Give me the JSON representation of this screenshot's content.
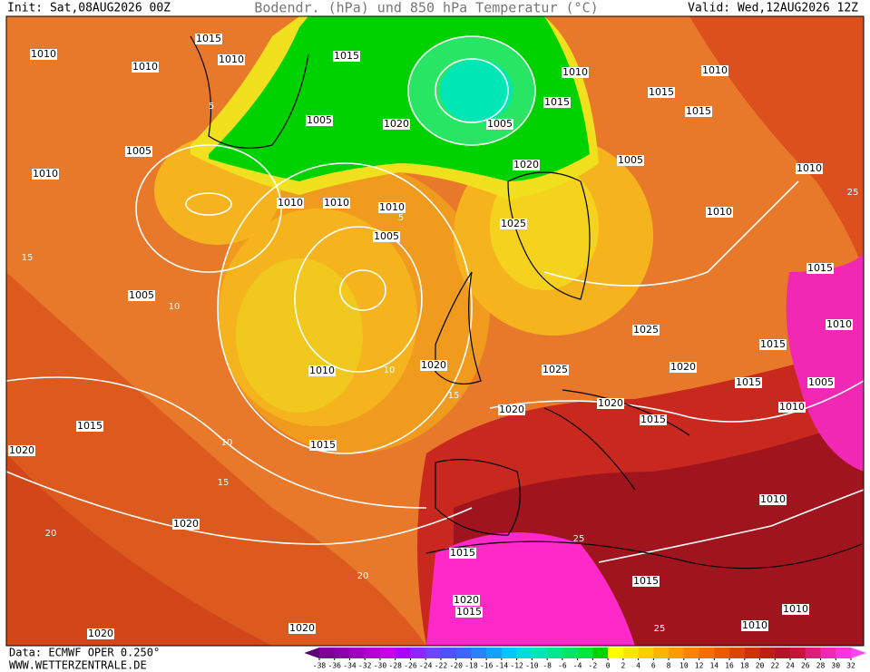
{
  "header": {
    "init": "Init: Sat,08AUG2026 00Z",
    "title": "Bodendr. (hPa) und 850 hPa Temperatur (°C)",
    "valid": "Valid: Wed,12AUG2026 12Z"
  },
  "footer": {
    "data": "Data: ECMWF OPER 0.250°",
    "site": "WWW.WETTERZENTRALE.DE"
  },
  "colorbar": {
    "ticks": [
      -38,
      -36,
      -34,
      -32,
      -30,
      -28,
      -26,
      -24,
      -22,
      -20,
      -18,
      -16,
      -14,
      -12,
      -10,
      -8,
      -6,
      -4,
      -2,
      0,
      2,
      4,
      6,
      8,
      10,
      12,
      14,
      16,
      18,
      20,
      22,
      24,
      26,
      28,
      30,
      32
    ],
    "colors": [
      "#5a0078",
      "#7a0096",
      "#8c00aa",
      "#a000c0",
      "#b400d2",
      "#c800e6",
      "#aa00ff",
      "#8c28ff",
      "#6e46ff",
      "#5050ff",
      "#3c64ff",
      "#2882ff",
      "#14a0ff",
      "#00c8ff",
      "#00dcdc",
      "#00e6b4",
      "#00e68c",
      "#00e664",
      "#00e63c",
      "#00d200",
      "#ffff00",
      "#ffe600",
      "#ffcd00",
      "#ffb400",
      "#ff9b00",
      "#ff8200",
      "#f56e00",
      "#eb5a00",
      "#dc4600",
      "#cd3200",
      "#be1e14",
      "#b41428",
      "#c8143c",
      "#dc1e78",
      "#f028b4",
      "#ff32dc",
      "#ff46f0"
    ]
  },
  "isobar_labels": [
    "1015",
    "1010",
    "1010",
    "1010",
    "1015",
    "1010",
    "1015",
    "1010",
    "1005",
    "1020",
    "1005",
    "1015",
    "1015",
    "1005",
    "1005",
    "1020",
    "1010",
    "1010",
    "1010",
    "1010",
    "1010",
    "1010",
    "1025",
    "1005",
    "1015",
    "1005",
    "1010",
    "1025",
    "1015",
    "1010",
    "1020",
    "1025",
    "1020",
    "1015",
    "1005",
    "1020",
    "1020",
    "1015",
    "1010",
    "1015",
    "1015",
    "1020",
    "1010",
    "1020",
    "1015",
    "1015",
    "1020",
    "1015",
    "1010",
    "1010",
    "1020",
    "1020"
  ],
  "temperature_labels": [
    "5",
    "10",
    "15",
    "10",
    "15",
    "20",
    "25",
    "5",
    "10",
    "15",
    "20",
    "25",
    "25"
  ]
}
